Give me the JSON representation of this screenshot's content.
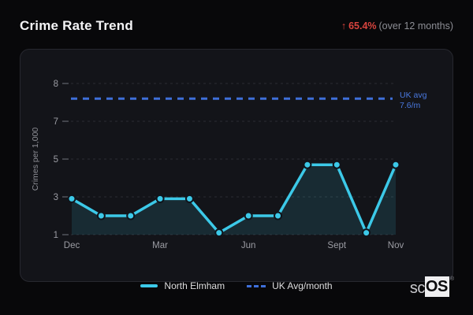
{
  "header": {
    "title": "Crime Rate Trend",
    "stat": {
      "arrow": "↑",
      "value": "65.4%",
      "caption": "(over 12 months)",
      "color": "#d8443e"
    }
  },
  "chart_data": {
    "type": "line",
    "title": "Crime Rate Trend",
    "ylabel": "Crimes per 1,000",
    "y_ticks": [
      1,
      3,
      5,
      7,
      8
    ],
    "points": 12,
    "x_tick_labels": [
      {
        "index": 0,
        "label": "Dec"
      },
      {
        "index": 3,
        "label": "Mar"
      },
      {
        "index": 6,
        "label": "Jun"
      },
      {
        "index": 9,
        "label": "Sept"
      },
      {
        "index": 11,
        "label": "Nov"
      }
    ],
    "series": [
      {
        "name": "North Elmham",
        "kind": "line",
        "color": "#3cc9e8",
        "values": [
          2.9,
          2,
          2,
          2.9,
          2.9,
          1.1,
          2,
          2,
          4.7,
          4.7,
          1.1,
          4.7
        ]
      },
      {
        "name": "UK Avg/month",
        "kind": "reference-line",
        "color": "#3e6fd9",
        "value": 7.6,
        "style": "dashed"
      }
    ],
    "annotation": {
      "line1": "UK avg",
      "line2": "7.6/m",
      "color": "#4a79e0"
    },
    "grid": true,
    "legend_position": "bottom",
    "area_fill": "rgba(60,201,232,0.13)",
    "grid_color": "#2e3037",
    "tick_text_color": "#9b9ca3"
  },
  "legend": {
    "items": [
      {
        "label": "North Elmham",
        "swatch": "solid",
        "color": "#3cc9e8"
      },
      {
        "label": "UK Avg/month",
        "swatch": "dashed",
        "color": "#3e6fd9"
      }
    ]
  },
  "logo": {
    "prefix": "sc",
    "suffix": "OS",
    "registered": "®"
  }
}
